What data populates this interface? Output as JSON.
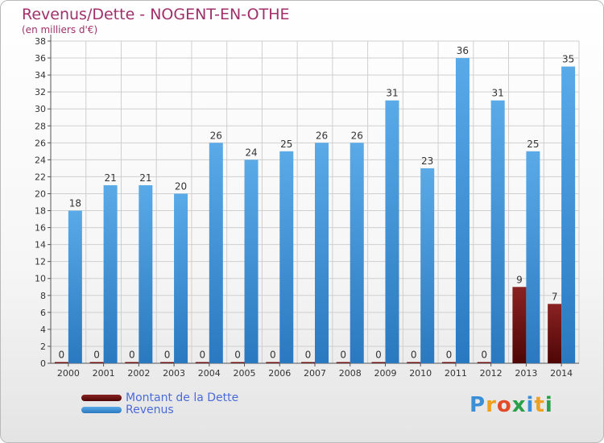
{
  "header": {
    "title": "Revenus/Dette - NOGENT-EN-OTHE",
    "subtitle": "(en milliers d'€)"
  },
  "colors": {
    "debt": "#6b0f0f",
    "revenue": "#3a95dc",
    "title": "#a0306a",
    "legend_text": "#4a6bd8"
  },
  "legend": {
    "items": [
      {
        "label": "Montant de la Dette",
        "color": "#6b0f0f"
      },
      {
        "label": "Revenus",
        "color": "#3a95dc"
      }
    ]
  },
  "logo": {
    "text": "Proxiti",
    "letters": [
      {
        "ch": "P",
        "color": "#3a8fd6"
      },
      {
        "ch": "r",
        "color": "#f0a020"
      },
      {
        "ch": "o",
        "color": "#e24a2a"
      },
      {
        "ch": "x",
        "color": "#2aa04a"
      },
      {
        "ch": "i",
        "color": "#3a8fd6"
      },
      {
        "ch": "t",
        "color": "#f0a020"
      },
      {
        "ch": "i",
        "color": "#2aa04a"
      }
    ]
  },
  "chart_data": {
    "type": "bar",
    "title": "Revenus/Dette - NOGENT-EN-OTHE",
    "subtitle": "(en milliers d'€)",
    "xlabel": "",
    "ylabel": "",
    "ylim": [
      0,
      38
    ],
    "ytick_step": 2,
    "grid": true,
    "legend_position": "bottom-left",
    "categories": [
      "2000",
      "2001",
      "2002",
      "2003",
      "2004",
      "2005",
      "2006",
      "2007",
      "2008",
      "2009",
      "2010",
      "2011",
      "2012",
      "2013",
      "2014"
    ],
    "series": [
      {
        "name": "Montant de la Dette",
        "values": [
          0,
          0,
          0,
          0,
          0,
          0,
          0,
          0,
          0,
          0,
          0,
          0,
          0,
          9,
          7
        ]
      },
      {
        "name": "Revenus",
        "values": [
          18,
          21,
          21,
          20,
          26,
          24,
          25,
          26,
          26,
          31,
          23,
          36,
          31,
          25,
          35
        ]
      }
    ]
  }
}
